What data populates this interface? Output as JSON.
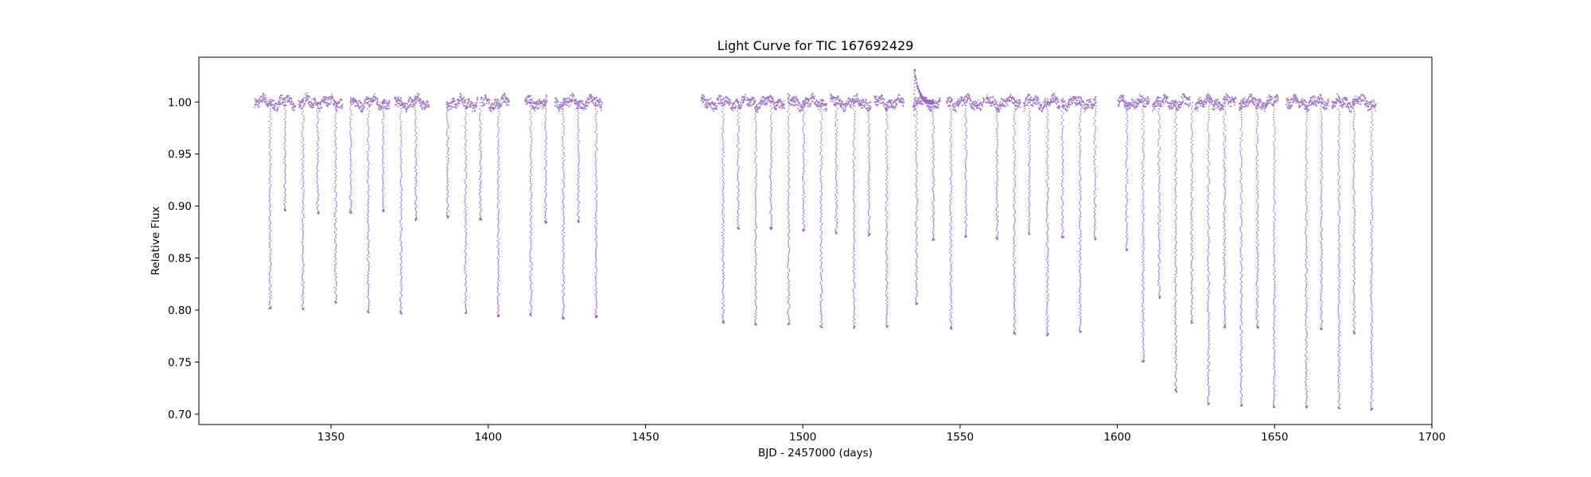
{
  "chart_data": {
    "type": "scatter",
    "title": "Light Curve for TIC 167692429",
    "xlabel": "BJD - 2457000 (days)",
    "ylabel": "Relative Flux",
    "xlim": [
      1308,
      1700
    ],
    "ylim": [
      0.69,
      1.043
    ],
    "xticks": [
      1350,
      1400,
      1450,
      1500,
      1550,
      1600,
      1650,
      1700
    ],
    "xtick_labels": [
      "1350",
      "1400",
      "1450",
      "1500",
      "1550",
      "1600",
      "1650",
      "1700"
    ],
    "yticks": [
      0.7,
      0.75,
      0.8,
      0.85,
      0.9,
      0.95,
      1.0
    ],
    "ytick_labels": [
      "0.70",
      "0.75",
      "0.80",
      "0.85",
      "0.90",
      "0.95",
      "1.00"
    ],
    "grid": false,
    "series": [
      {
        "name": "flux",
        "color": "#9467bd"
      }
    ],
    "data_segments": [
      [
        1325.5,
        1338.5
      ],
      [
        1339.5,
        1353.5
      ],
      [
        1356.0,
        1368.5
      ],
      [
        1370.0,
        1381.0
      ],
      [
        1386.5,
        1396.5
      ],
      [
        1397.5,
        1406.5
      ],
      [
        1411.5,
        1418.5
      ],
      [
        1421.0,
        1436.0
      ],
      [
        1467.5,
        1481.5
      ],
      [
        1482.0,
        1494.0
      ],
      [
        1495.0,
        1507.5
      ],
      [
        1508.5,
        1521.5
      ],
      [
        1522.5,
        1532.0
      ],
      [
        1534.8,
        1543.5
      ],
      [
        1545.5,
        1557.5
      ],
      [
        1558.0,
        1569.0
      ],
      [
        1570.0,
        1581.5
      ],
      [
        1582.0,
        1593.0
      ],
      [
        1600.0,
        1610.0
      ],
      [
        1611.0,
        1623.0
      ],
      [
        1624.5,
        1637.5
      ],
      [
        1638.5,
        1651.0
      ],
      [
        1653.5,
        1667.0
      ],
      [
        1668.0,
        1682.0
      ]
    ],
    "eclipses": [
      {
        "time": 1330.5,
        "min_flux": 0.803
      },
      {
        "time": 1335.2,
        "min_flux": 0.897
      },
      {
        "time": 1340.9,
        "min_flux": 0.801
      },
      {
        "time": 1345.6,
        "min_flux": 0.894
      },
      {
        "time": 1351.3,
        "min_flux": 0.808
      },
      {
        "time": 1356.1,
        "min_flux": 0.895
      },
      {
        "time": 1361.7,
        "min_flux": 0.799
      },
      {
        "time": 1366.4,
        "min_flux": 0.896
      },
      {
        "time": 1372.1,
        "min_flux": 0.798
      },
      {
        "time": 1376.8,
        "min_flux": 0.888
      },
      {
        "time": 1386.9,
        "min_flux": 0.89
      },
      {
        "time": 1392.6,
        "min_flux": 0.798
      },
      {
        "time": 1397.3,
        "min_flux": 0.888
      },
      {
        "time": 1403.0,
        "min_flux": 0.795
      },
      {
        "time": 1413.4,
        "min_flux": 0.796
      },
      {
        "time": 1418.1,
        "min_flux": 0.885
      },
      {
        "time": 1423.7,
        "min_flux": 0.793
      },
      {
        "time": 1428.5,
        "min_flux": 0.886
      },
      {
        "time": 1434.1,
        "min_flux": 0.794
      },
      {
        "time": 1474.5,
        "min_flux": 0.789
      },
      {
        "time": 1479.3,
        "min_flux": 0.879
      },
      {
        "time": 1484.9,
        "min_flux": 0.787
      },
      {
        "time": 1489.7,
        "min_flux": 0.879
      },
      {
        "time": 1495.3,
        "min_flux": 0.787
      },
      {
        "time": 1500.1,
        "min_flux": 0.877
      },
      {
        "time": 1505.7,
        "min_flux": 0.785
      },
      {
        "time": 1510.5,
        "min_flux": 0.875
      },
      {
        "time": 1516.1,
        "min_flux": 0.784
      },
      {
        "time": 1520.9,
        "min_flux": 0.873
      },
      {
        "time": 1526.5,
        "min_flux": 0.785
      },
      {
        "time": 1536.0,
        "min_flux": 0.807
      },
      {
        "time": 1541.3,
        "min_flux": 0.869
      },
      {
        "time": 1546.9,
        "min_flux": 0.783
      },
      {
        "time": 1551.7,
        "min_flux": 0.871
      },
      {
        "time": 1561.6,
        "min_flux": 0.87
      },
      {
        "time": 1567.1,
        "min_flux": 0.778
      },
      {
        "time": 1571.9,
        "min_flux": 0.874
      },
      {
        "time": 1577.6,
        "min_flux": 0.777
      },
      {
        "time": 1582.4,
        "min_flux": 0.87
      },
      {
        "time": 1588.0,
        "min_flux": 0.78
      },
      {
        "time": 1592.7,
        "min_flux": 0.869
      },
      {
        "time": 1602.8,
        "min_flux": 0.858
      },
      {
        "time": 1608.0,
        "min_flux": 0.751
      },
      {
        "time": 1613.1,
        "min_flux": 0.813
      },
      {
        "time": 1618.4,
        "min_flux": 0.723
      },
      {
        "time": 1623.5,
        "min_flux": 0.789
      },
      {
        "time": 1628.8,
        "min_flux": 0.71
      },
      {
        "time": 1633.9,
        "min_flux": 0.785
      },
      {
        "time": 1639.2,
        "min_flux": 0.709
      },
      {
        "time": 1644.3,
        "min_flux": 0.784
      },
      {
        "time": 1649.7,
        "min_flux": 0.708
      },
      {
        "time": 1659.9,
        "min_flux": 0.708
      },
      {
        "time": 1664.7,
        "min_flux": 0.782
      },
      {
        "time": 1670.3,
        "min_flux": 0.706
      },
      {
        "time": 1675.1,
        "min_flux": 0.779
      },
      {
        "time": 1680.7,
        "min_flux": 0.705
      }
    ],
    "flare": {
      "time": 1535.4,
      "peak_flux": 1.031
    }
  }
}
